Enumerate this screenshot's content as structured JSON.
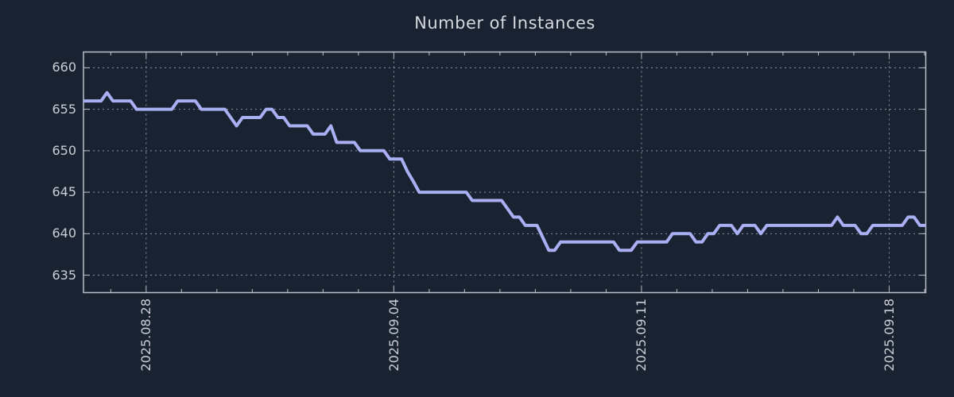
{
  "colors": {
    "background": "#192230",
    "border": "#b9c0c8",
    "grid": "#8f969e",
    "tick_text": "#c9ced4",
    "title_text": "#d3d8dd",
    "line": "#a9aff3"
  },
  "chart_data": {
    "type": "line",
    "title": "Number of Instances",
    "legend": "none",
    "grid": "dotted",
    "series": [
      {
        "name": "instances",
        "color": "#a9aff3",
        "values": [
          656,
          656,
          656,
          656,
          657,
          656,
          656,
          656,
          656,
          655,
          655,
          655,
          655,
          655,
          655,
          655,
          656,
          656,
          656,
          656,
          655,
          655,
          655,
          655,
          655,
          654,
          653,
          654,
          654,
          654,
          654,
          655,
          655,
          654,
          654,
          653,
          653,
          653,
          653,
          652,
          652,
          652,
          653,
          651,
          651,
          651,
          651,
          650,
          650,
          650,
          650,
          650,
          649,
          649,
          649,
          647.5,
          646.3,
          645,
          645,
          645,
          645,
          645,
          645,
          645,
          645,
          645,
          644,
          644,
          644,
          644,
          644,
          644,
          643,
          642,
          642,
          641,
          641,
          641,
          639.5,
          638,
          638,
          639,
          639,
          639,
          639,
          639,
          639,
          639,
          639,
          639,
          639,
          638,
          638,
          638,
          639,
          639,
          639,
          639,
          639,
          639,
          640,
          640,
          640,
          640,
          639,
          639,
          640,
          640,
          641,
          641,
          641,
          640,
          641,
          641,
          641,
          640,
          641,
          641,
          641,
          641,
          641,
          641,
          641,
          641,
          641,
          641,
          641,
          641,
          642,
          641,
          641,
          641,
          640,
          640,
          641,
          641,
          641,
          641,
          641,
          641,
          642,
          642,
          641,
          641
        ]
      }
    ],
    "x_axis": {
      "tick_labels": [
        "2025.08.28",
        "2025.09.04",
        "2025.09.11",
        "2025.09.18"
      ],
      "minor_start_index": 4.63,
      "minor_step_index": 6.007,
      "minor_count": 24,
      "major_every": 7,
      "major_first_minor": 1
    },
    "y_axis": {
      "ticks": [
        635,
        640,
        645,
        650,
        655,
        660
      ],
      "range": [
        632.9,
        661.9
      ]
    }
  }
}
